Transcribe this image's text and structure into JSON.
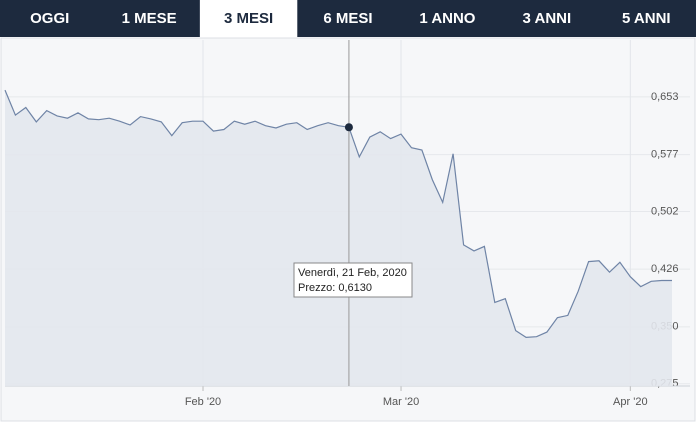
{
  "tabs": [
    "OGGI",
    "1 MESE",
    "3 MESI",
    "6 MESI",
    "1 ANNO",
    "3 ANNI",
    "5 ANNI"
  ],
  "active_tab": 2,
  "chart_data": {
    "type": "line",
    "categories": [
      null,
      null,
      null,
      null,
      null,
      null,
      null,
      null,
      null,
      null,
      null,
      null,
      null,
      null,
      null,
      null,
      null,
      null,
      null,
      "Feb '20",
      null,
      null,
      null,
      null,
      null,
      null,
      null,
      null,
      null,
      null,
      null,
      null,
      null,
      null,
      null,
      null,
      null,
      null,
      "Mar '20",
      null,
      null,
      null,
      null,
      null,
      null,
      null,
      null,
      null,
      null,
      null,
      null,
      null,
      null,
      null,
      null,
      null,
      null,
      null,
      null,
      null,
      "Apr '20",
      null,
      null,
      null,
      null
    ],
    "values": [
      0.662,
      0.629,
      0.639,
      0.62,
      0.635,
      0.628,
      0.625,
      0.632,
      0.624,
      0.623,
      0.625,
      0.621,
      0.616,
      0.627,
      0.624,
      0.62,
      0.602,
      0.619,
      0.621,
      0.621,
      0.608,
      0.61,
      0.621,
      0.617,
      0.621,
      0.615,
      0.612,
      0.617,
      0.619,
      0.61,
      0.615,
      0.619,
      0.615,
      0.613,
      0.574,
      0.6,
      0.607,
      0.598,
      0.604,
      0.586,
      0.583,
      0.544,
      0.514,
      0.578,
      0.458,
      0.45,
      0.456,
      0.382,
      0.387,
      0.345,
      0.336,
      0.337,
      0.343,
      0.362,
      0.365,
      0.397,
      0.436,
      0.437,
      0.422,
      0.435,
      0.416,
      0.403,
      0.41,
      0.411,
      0.411
    ],
    "color": "#6f84a6",
    "ylim": [
      0.272,
      0.728
    ],
    "yticks": [
      {
        "value": 0.275,
        "label": "0,275"
      },
      {
        "value": 0.35,
        "label": "0,350"
      },
      {
        "value": 0.426,
        "label": "0,426"
      },
      {
        "value": 0.502,
        "label": "0,502"
      },
      {
        "value": 0.577,
        "label": "0,577"
      },
      {
        "value": 0.653,
        "label": "0,653"
      }
    ],
    "grid": true,
    "highlight_index": 33,
    "tooltip": {
      "date": "Venerdì, 21 Feb, 2020",
      "price": "Prezzo: 0,6130"
    }
  }
}
